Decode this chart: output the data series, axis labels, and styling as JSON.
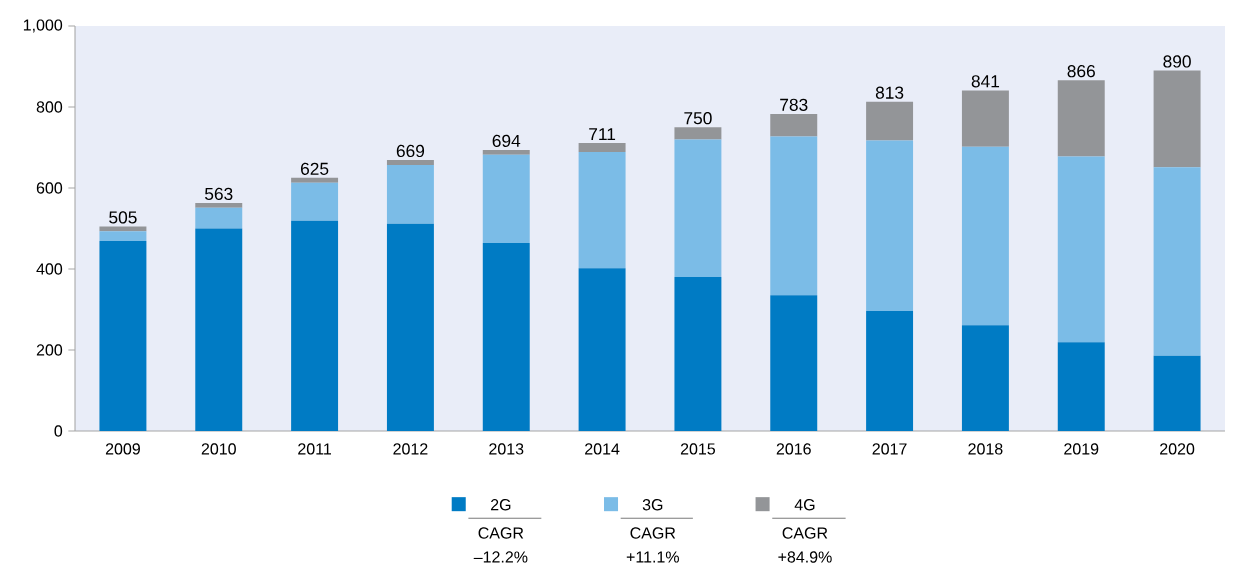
{
  "chart_data": {
    "type": "bar",
    "stacked": true,
    "categories": [
      "2009",
      "2010",
      "2011",
      "2012",
      "2013",
      "2014",
      "2015",
      "2016",
      "2017",
      "2018",
      "2019",
      "2020"
    ],
    "series": [
      {
        "name": "2G",
        "color": "#007bc4",
        "values": [
          469,
          500,
          519,
          512,
          464,
          402,
          380,
          335,
          296,
          261,
          219,
          186
        ]
      },
      {
        "name": "3G",
        "color": "#7bbce7",
        "values": [
          24,
          51,
          94,
          145,
          218,
          287,
          340,
          392,
          421,
          441,
          459,
          465
        ]
      },
      {
        "name": "4G",
        "color": "#939598",
        "values": [
          12,
          12,
          12,
          12,
          12,
          22,
          30,
          56,
          96,
          139,
          188,
          239
        ]
      }
    ],
    "totals": [
      "505",
      "563",
      "625",
      "669",
      "694",
      "711",
      "750",
      "783",
      "813",
      "841",
      "866",
      "890"
    ],
    "ylim": [
      0,
      1000
    ],
    "yticks": [
      0,
      200,
      400,
      600,
      800,
      {
        "value": 1000,
        "label": "1,000"
      }
    ],
    "legend": "bottom",
    "grid": false,
    "annotations": [
      "CAGR",
      "–12.2%",
      "CAGR",
      "+11.1%",
      "CAGR",
      "+84.9%"
    ]
  }
}
